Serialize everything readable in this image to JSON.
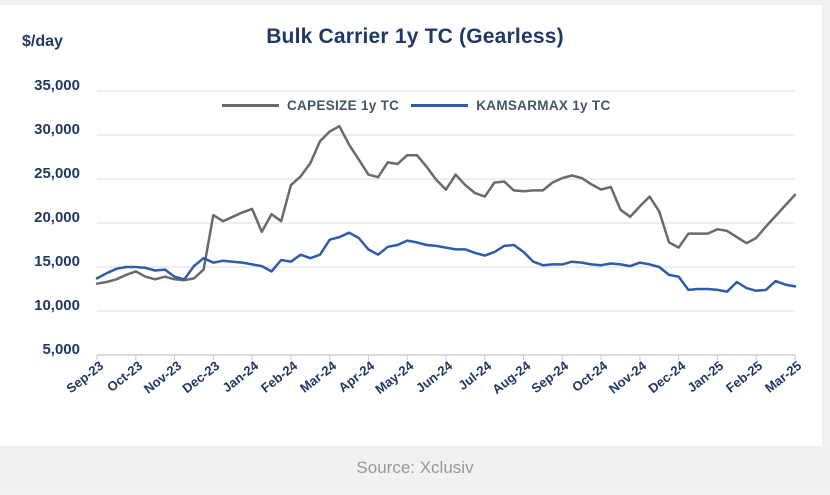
{
  "chart": {
    "y_axis_title": "$/day"
  },
  "footer": {
    "source": "Source: Xclusiv"
  },
  "chart_data": {
    "type": "line",
    "title": "Bulk Carrier 1y TC (Gearless)",
    "xlabel": "",
    "ylabel": "$/day",
    "ylim": [
      5000,
      35000
    ],
    "ytick_step": 5000,
    "yticks": [
      "5,000",
      "10,000",
      "15,000",
      "20,000",
      "25,000",
      "30,000",
      "35,000"
    ],
    "grid": "horizontal",
    "legend_position": "top-center",
    "categories": [
      "Sep-23",
      "Oct-23",
      "Nov-23",
      "Dec-23",
      "Jan-24",
      "Feb-24",
      "Mar-24",
      "Apr-24",
      "May-24",
      "Jun-24",
      "Jul-24",
      "Aug-24",
      "Sep-24",
      "Oct-24",
      "Nov-24",
      "Dec-24",
      "Jan-25",
      "Feb-25",
      "Mar-25"
    ],
    "points_per_month": 4,
    "series": [
      {
        "name": "CAPESIZE 1y TC",
        "color": "#6a6a6a",
        "values": [
          13100,
          13300,
          13600,
          14100,
          14500,
          13900,
          13600,
          13900,
          13600,
          13500,
          13700,
          14700,
          20900,
          20200,
          20700,
          21200,
          21600,
          19000,
          21000,
          20200,
          24300,
          25300,
          26800,
          29300,
          30400,
          31000,
          28900,
          27200,
          25500,
          25200,
          26900,
          26700,
          27700,
          27700,
          26400,
          24900,
          23800,
          25500,
          24300,
          23400,
          23000,
          24600,
          24700,
          23700,
          23600,
          23700,
          23700,
          24600,
          25100,
          25400,
          25100,
          24400,
          23800,
          24100,
          21500,
          20700,
          21900,
          23000,
          21300,
          17800,
          17200,
          18800,
          18800,
          18800,
          19300,
          19100,
          18400,
          17700,
          18300,
          19600,
          20800,
          22000,
          23200
        ]
      },
      {
        "name": "KAMSARMAX 1y TC",
        "color": "#2e5ca8",
        "values": [
          13700,
          14300,
          14800,
          15000,
          15000,
          14900,
          14600,
          14700,
          13900,
          13600,
          15100,
          16000,
          15500,
          15700,
          15600,
          15500,
          15300,
          15100,
          14500,
          15800,
          15600,
          16400,
          16000,
          16400,
          18100,
          18400,
          18900,
          18300,
          17000,
          16400,
          17300,
          17500,
          18000,
          17800,
          17500,
          17400,
          17200,
          17000,
          17000,
          16600,
          16300,
          16700,
          17400,
          17500,
          16700,
          15600,
          15200,
          15300,
          15300,
          15600,
          15500,
          15300,
          15200,
          15400,
          15300,
          15100,
          15500,
          15300,
          15000,
          14100,
          13900,
          12400,
          12500,
          12500,
          12400,
          12200,
          13300,
          12600,
          12300,
          12400,
          13400,
          13000,
          12800
        ]
      }
    ]
  }
}
